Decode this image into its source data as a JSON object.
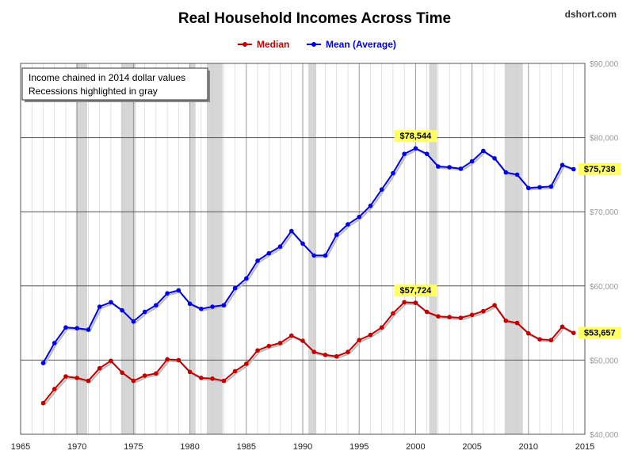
{
  "chart_data": {
    "type": "line",
    "title": "Real Household Incomes Across Time",
    "source": "dshort.com",
    "notes": [
      "Income chained in 2014 dollar values",
      "Recessions highlighted in gray"
    ],
    "x": [
      1967,
      1968,
      1969,
      1970,
      1971,
      1972,
      1973,
      1974,
      1975,
      1976,
      1977,
      1978,
      1979,
      1980,
      1981,
      1982,
      1983,
      1984,
      1985,
      1986,
      1987,
      1988,
      1989,
      1990,
      1991,
      1992,
      1993,
      1994,
      1995,
      1996,
      1997,
      1998,
      1999,
      2000,
      2001,
      2002,
      2003,
      2004,
      2005,
      2006,
      2007,
      2008,
      2009,
      2010,
      2011,
      2012,
      2013,
      2014
    ],
    "series": [
      {
        "name": "Median",
        "color": "#c00000",
        "values": [
          44200,
          46100,
          47800,
          47600,
          47200,
          48900,
          49900,
          48300,
          47200,
          47900,
          48200,
          50100,
          50000,
          48400,
          47600,
          47500,
          47200,
          48500,
          49500,
          51300,
          51900,
          52300,
          53300,
          52600,
          51100,
          50700,
          50500,
          51100,
          52700,
          53400,
          54400,
          56300,
          57800,
          57724,
          56500,
          55900,
          55800,
          55700,
          56100,
          56600,
          57400,
          55300,
          55000,
          53600,
          52800,
          52700,
          54500,
          53657
        ]
      },
      {
        "name": "Mean (Average)",
        "color": "#0000e0",
        "values": [
          49600,
          52300,
          54400,
          54300,
          54100,
          57200,
          57800,
          56700,
          55200,
          56500,
          57400,
          59000,
          59400,
          57600,
          56900,
          57200,
          57400,
          59700,
          61000,
          63400,
          64400,
          65300,
          67400,
          65700,
          64100,
          64100,
          66900,
          68300,
          69300,
          70800,
          73000,
          75200,
          77800,
          78544,
          77800,
          76100,
          76000,
          75800,
          76800,
          78200,
          77200,
          75300,
          75000,
          73200,
          73300,
          73400,
          76300,
          75738
        ]
      }
    ],
    "callouts": [
      {
        "series": 1,
        "x": 2000,
        "label": "$78,544"
      },
      {
        "series": 1,
        "x": 2014,
        "label": "$75,738"
      },
      {
        "series": 0,
        "x": 2000,
        "label": "$57,724"
      },
      {
        "series": 0,
        "x": 2014,
        "label": "$53,657"
      }
    ],
    "recessions": [
      [
        1969.9,
        1970.9
      ],
      [
        1973.9,
        1975.2
      ],
      [
        1980.0,
        1980.5
      ],
      [
        1981.5,
        1982.9
      ],
      [
        1990.5,
        1991.2
      ],
      [
        2001.2,
        2001.9
      ],
      [
        2007.9,
        2009.5
      ]
    ],
    "xlim": [
      1965,
      2015
    ],
    "ylim": [
      40000,
      90000
    ],
    "x_ticks": [
      1965,
      1970,
      1975,
      1980,
      1985,
      1990,
      1995,
      2000,
      2005,
      2010,
      2015
    ],
    "y_ticks": [
      {
        "value": 40000,
        "label": "$40,000"
      },
      {
        "value": 50000,
        "label": "$50,000"
      },
      {
        "value": 60000,
        "label": "$60,000"
      },
      {
        "value": 70000,
        "label": "$70,000"
      },
      {
        "value": 80000,
        "label": "$80,000"
      },
      {
        "value": 90000,
        "label": "$90,000"
      }
    ],
    "grid": "vertical-yearly-and-horizontal",
    "y_axis_side": "right",
    "legend_position": "top-center",
    "colors": {
      "recession": "#d6d6d6",
      "callout_bg": "#ffff66",
      "grid": "#cfcfcf",
      "major_grid": "#9a9a9a"
    }
  }
}
